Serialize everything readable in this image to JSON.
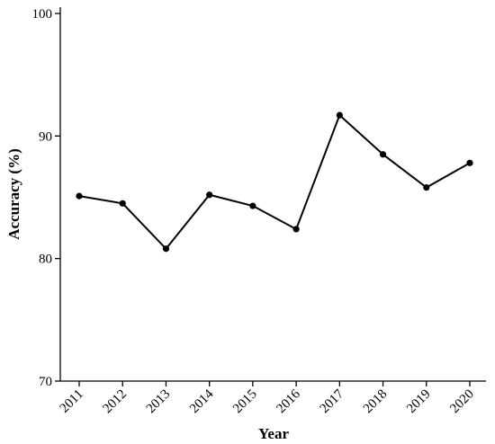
{
  "chart_data": {
    "type": "line",
    "title": "",
    "xlabel": "Year",
    "ylabel": "Accuracy (%)",
    "x": [
      "2011",
      "2012",
      "2013",
      "2014",
      "2015",
      "2016",
      "2017",
      "2018",
      "2019",
      "2020"
    ],
    "series": [
      {
        "values": [
          85.1,
          84.5,
          80.8,
          85.2,
          84.3,
          82.4,
          91.7,
          88.5,
          85.8,
          87.8
        ],
        "color": "#000000"
      }
    ],
    "ylim": [
      70,
      100
    ],
    "yticks": [
      "70",
      "80",
      "90",
      "100"
    ],
    "grid": false,
    "legend": "none"
  }
}
